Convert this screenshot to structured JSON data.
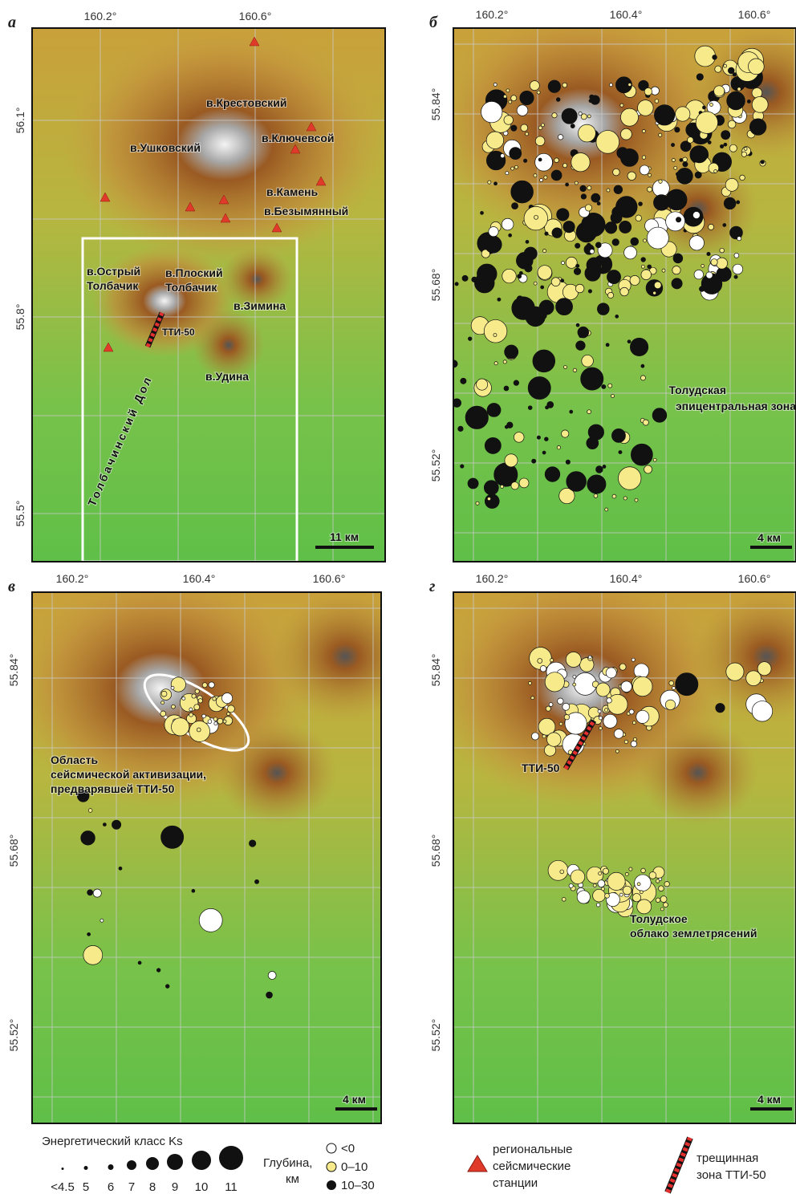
{
  "panels": [
    {
      "letter": "а",
      "lon_labels": [
        "160.2°",
        "160.6°"
      ],
      "lat_labels": [
        "56.1°",
        "55.8°",
        "55.5°"
      ],
      "labels": [
        "в.Крестовский",
        "в.Ушковский",
        "в.Ключевсой",
        "в.Камень",
        "в.Безымянный",
        "в.Острый",
        "Толбачик",
        "в.Плоский",
        "Толбачик",
        "в.Зимина",
        "ТТИ-50",
        "в.Удина",
        "Толбачинский Дол"
      ],
      "scale": "11 км"
    },
    {
      "letter": "б",
      "lon_labels": [
        "160.2°",
        "160.4°",
        "160.6°"
      ],
      "lat_labels": [
        "55.84°",
        "55.68°",
        "55.52°"
      ],
      "labels": [
        "Толудская",
        "эпицентральная зона"
      ],
      "scale": "4 км"
    },
    {
      "letter": "в",
      "lon_labels": [
        "160.2°",
        "160.4°",
        "160.6°"
      ],
      "lat_labels": [
        "55.84°",
        "55.68°",
        "55.52°"
      ],
      "labels": [
        "Область",
        "сейсмической активизации,",
        "предварявшей ТТИ-50"
      ],
      "scale": "4 км"
    },
    {
      "letter": "г",
      "lon_labels": [
        "160.2°",
        "160.4°",
        "160.6°"
      ],
      "lat_labels": [
        "55.84°",
        "55.68°",
        "55.52°"
      ],
      "labels": [
        "ТТИ-50",
        "Толудское",
        "облако землетрясений"
      ],
      "scale": "4 км"
    }
  ],
  "legend": {
    "energy_title": "Энергетический класс Ks",
    "energy_classes": [
      "<4.5",
      "5",
      "6",
      "7",
      "8",
      "9",
      "10",
      "11"
    ],
    "depth_title": [
      "Глубина,",
      "км"
    ],
    "depth_classes": [
      "<0",
      "0–10",
      "10–30"
    ],
    "stations": [
      "региональные",
      "сейсмические",
      "станции"
    ],
    "fracture": [
      "трещинная",
      "зона ТТИ-50"
    ]
  }
}
